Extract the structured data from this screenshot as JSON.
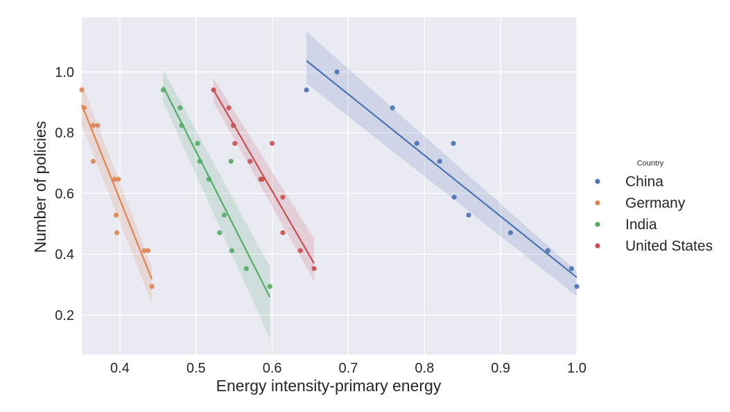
{
  "chart_data": {
    "type": "scatter",
    "title": "",
    "xlabel": "Energy intensity-primary energy",
    "ylabel": "Number of policies",
    "xlim": [
      0.35,
      1.0
    ],
    "ylim": [
      0.07,
      1.18
    ],
    "xticks": [
      "0.4",
      "0.5",
      "0.6",
      "0.7",
      "0.8",
      "0.9",
      "1.0"
    ],
    "yticks": [
      "0.2",
      "0.4",
      "0.6",
      "0.8",
      "1.0"
    ],
    "grid": true,
    "regression_lines": true,
    "legend": {
      "title": "Country",
      "placement": "right"
    },
    "series": [
      {
        "name": "China",
        "color": "#4c72b0",
        "points": [
          [
            0.645,
            0.941
          ],
          [
            0.685,
            1.0
          ],
          [
            0.758,
            0.882
          ],
          [
            0.79,
            0.765
          ],
          [
            0.838,
            0.765
          ],
          [
            0.82,
            0.706
          ],
          [
            0.839,
            0.588
          ],
          [
            0.858,
            0.529
          ],
          [
            0.913,
            0.471
          ],
          [
            0.962,
            0.412
          ],
          [
            0.993,
            0.353
          ],
          [
            1.0,
            0.294
          ]
        ],
        "fit": {
          "x": [
            0.645,
            1.0
          ],
          "y": [
            1.037,
            0.324
          ]
        },
        "ci_upper": [
          1.133,
          0.344
        ],
        "ci_lower": [
          0.962,
          0.262
        ]
      },
      {
        "name": "Germany",
        "color": "#dd8452",
        "points": [
          [
            0.35,
            0.941
          ],
          [
            0.353,
            0.882
          ],
          [
            0.365,
            0.824
          ],
          [
            0.371,
            0.824
          ],
          [
            0.365,
            0.706
          ],
          [
            0.393,
            0.647
          ],
          [
            0.398,
            0.647
          ],
          [
            0.395,
            0.529
          ],
          [
            0.396,
            0.471
          ],
          [
            0.432,
            0.412
          ],
          [
            0.437,
            0.412
          ],
          [
            0.442,
            0.294
          ]
        ],
        "fit": {
          "x": [
            0.35,
            0.442
          ],
          "y": [
            0.892,
            0.318
          ]
        },
        "ci_upper": [
          0.962,
          0.36
        ],
        "ci_lower": [
          0.825,
          0.238
        ]
      },
      {
        "name": "India",
        "color": "#55a868",
        "points": [
          [
            0.457,
            0.941
          ],
          [
            0.479,
            0.882
          ],
          [
            0.481,
            0.824
          ],
          [
            0.502,
            0.765
          ],
          [
            0.505,
            0.706
          ],
          [
            0.517,
            0.647
          ],
          [
            0.537,
            0.529
          ],
          [
            0.531,
            0.471
          ],
          [
            0.546,
            0.706
          ],
          [
            0.547,
            0.412
          ],
          [
            0.566,
            0.353
          ],
          [
            0.597,
            0.294
          ]
        ],
        "fit": {
          "x": [
            0.457,
            0.597
          ],
          "y": [
            0.951,
            0.259
          ]
        },
        "ci_upper": [
          1.008,
          0.358
        ],
        "ci_lower": [
          0.901,
          0.122
        ]
      },
      {
        "name": "United States",
        "color": "#c44e52",
        "points": [
          [
            0.523,
            0.941
          ],
          [
            0.543,
            0.882
          ],
          [
            0.549,
            0.824
          ],
          [
            0.551,
            0.765
          ],
          [
            0.571,
            0.706
          ],
          [
            0.585,
            0.647
          ],
          [
            0.587,
            0.647
          ],
          [
            0.6,
            0.765
          ],
          [
            0.614,
            0.588
          ],
          [
            0.614,
            0.471
          ],
          [
            0.637,
            0.412
          ],
          [
            0.655,
            0.353
          ]
        ],
        "fit": {
          "x": [
            0.523,
            0.655
          ],
          "y": [
            0.941,
            0.37
          ]
        },
        "ci_upper": [
          0.98,
          0.452
        ],
        "ci_lower": [
          0.9,
          0.312
        ]
      }
    ]
  }
}
